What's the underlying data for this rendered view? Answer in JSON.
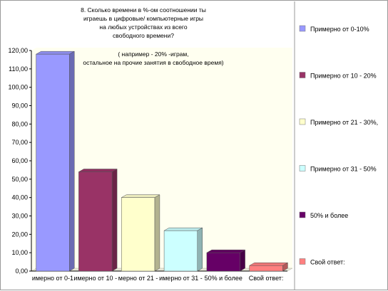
{
  "chart_data": {
    "type": "bar",
    "title_lines": [
      "8. Сколько  времени в  %-ом соотношении  ты",
      "играешь в цифровые/ компьютерные игры",
      "на любых устройствах из всего",
      "свободного времени?"
    ],
    "subtitle_lines": [
      "( например - 20% -играм,",
      "остальное на  прочие занятия в свободное время)"
    ],
    "categories": [
      "Примерно от 0-10%",
      "Примерно от 10 - 20%",
      "Примерно от 21 - 30%,",
      "Примерно от 31 - 50%",
      "50% и более",
      "Свой ответ:"
    ],
    "category_tick_labels": [
      "имерно от 0-1",
      "имерно от 10 -",
      "мерно от 21 -",
      "имерно от 31 -",
      "50% и более",
      "Свой ответ:"
    ],
    "values": [
      118,
      54,
      40,
      22,
      10,
      3
    ],
    "ylim": [
      0,
      120
    ],
    "y_ticks": [
      "0,00",
      "10,00",
      "20,00",
      "30,00",
      "40,00",
      "50,00",
      "60,00",
      "70,00",
      "80,00",
      "90,00",
      "100,00",
      "110,00",
      "120,00"
    ],
    "colors": [
      "#9999ff",
      "#993366",
      "#ffffcc",
      "#ccffff",
      "#660066",
      "#ff8080"
    ],
    "legend": [
      "Примерно от 0-10%",
      "Примерно от 10 - 20%",
      "Примерно от 21 - 30%,",
      "Примерно от 31 - 50%",
      "50% и более",
      "Свой ответ:"
    ],
    "legend_position": "right",
    "grid": false,
    "plot_background": "#fffff0",
    "style": "3d-column"
  }
}
